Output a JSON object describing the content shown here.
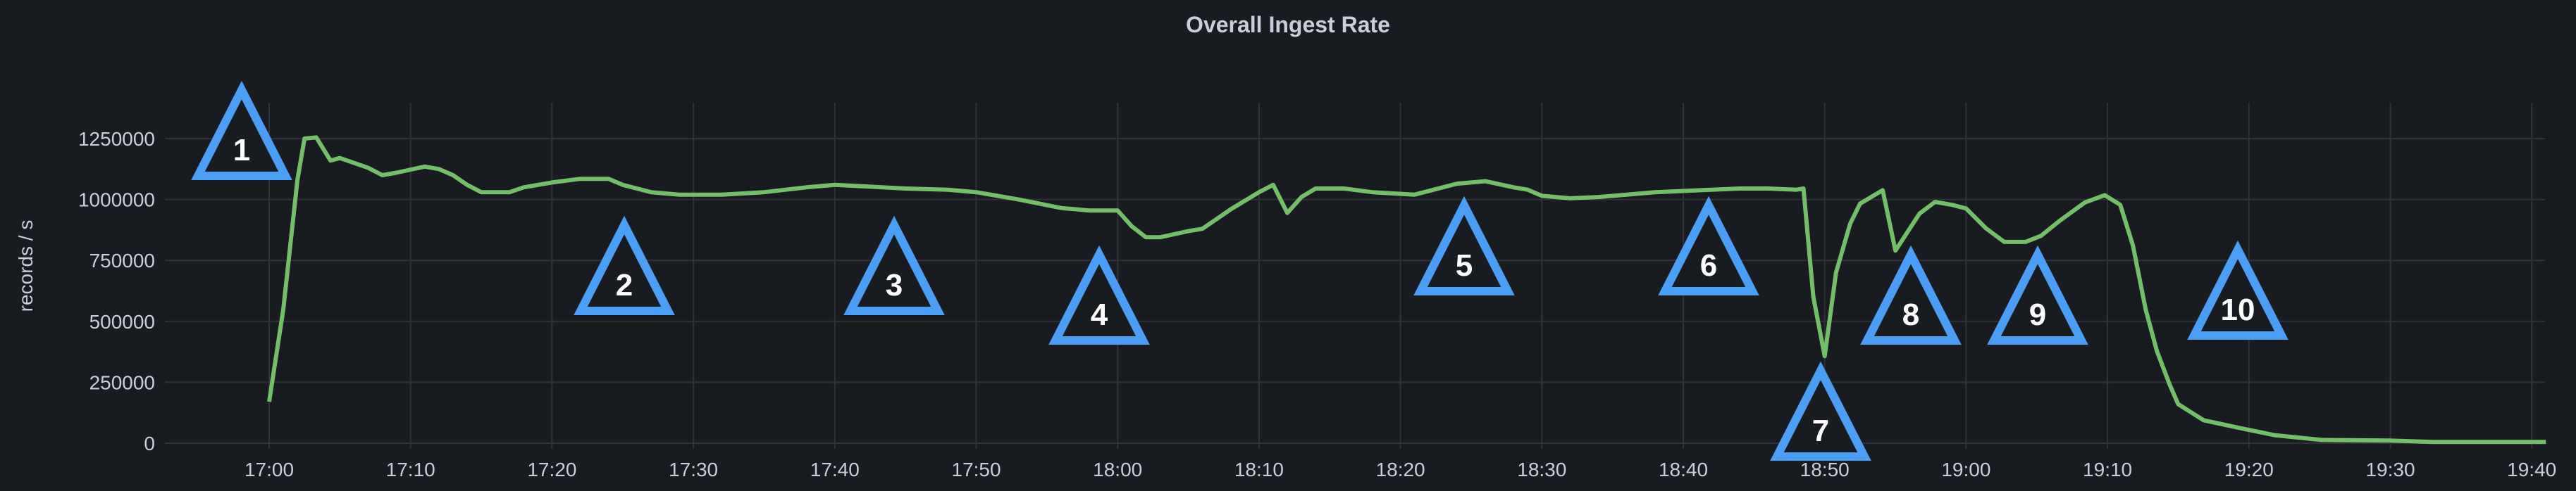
{
  "chart_data": {
    "type": "line",
    "title": "Overall Ingest Rate",
    "ylabel": "records / s",
    "xlabel": "",
    "ylim": [
      0,
      1250000
    ],
    "yticks": [
      "0",
      "250000",
      "500000",
      "750000",
      "1000000",
      "1250000"
    ],
    "xticks": [
      "17:00",
      "17:10",
      "17:20",
      "17:30",
      "17:40",
      "17:50",
      "18:00",
      "18:10",
      "18:20",
      "18:30",
      "18:40",
      "18:50",
      "19:00",
      "19:10",
      "19:20",
      "19:30",
      "19:40"
    ],
    "grid": true,
    "colors": {
      "series": "#73bf69",
      "annotation": "#4a9ff5",
      "background": "#181b1f"
    },
    "series": [
      {
        "x": [
          "17:00",
          "17:01",
          "17:02",
          "17:02:30",
          "17:03:20",
          "17:04:20",
          "17:05",
          "17:06",
          "17:07",
          "17:08",
          "17:09",
          "17:11",
          "17:12",
          "17:13",
          "17:14",
          "17:15",
          "17:17",
          "17:18",
          "17:20",
          "17:22",
          "17:24",
          "17:25",
          "17:27",
          "17:29",
          "17:32",
          "17:35",
          "17:38",
          "17:40",
          "17:45",
          "17:48",
          "17:50",
          "17:53",
          "17:56",
          "17:58",
          "18:00",
          "18:01",
          "18:02",
          "18:03",
          "18:05",
          "18:06",
          "18:08",
          "18:10",
          "18:11",
          "18:12",
          "18:13",
          "18:14",
          "18:16",
          "18:18",
          "18:21",
          "18:23",
          "18:24",
          "18:26",
          "18:28",
          "18:29",
          "18:30",
          "18:32",
          "18:34",
          "18:36",
          "18:38",
          "18:40",
          "18:42",
          "18:44",
          "18:46",
          "18:48",
          "18:48:30",
          "18:49:12",
          "18:50",
          "18:50:48",
          "18:51:48",
          "18:52:30",
          "18:54:06",
          "18:55",
          "18:56:42",
          "18:57:48",
          "18:59",
          "19:00",
          "19:01:24",
          "19:02:42",
          "19:04:12",
          "19:05:18",
          "19:06:36",
          "19:08:24",
          "19:09:48",
          "19:10:54",
          "19:11:48",
          "19:12:42",
          "19:13:30",
          "19:14:24",
          "19:15",
          "19:16:48",
          "19:19:12",
          "19:21:48",
          "19:25:12",
          "19:29:54",
          "19:33",
          "19:41"
        ],
        "values": [
          170000,
          550000,
          1080000,
          1250000,
          1255000,
          1160000,
          1170000,
          1150000,
          1130000,
          1100000,
          1110000,
          1135000,
          1125000,
          1100000,
          1060000,
          1030000,
          1030000,
          1050000,
          1070000,
          1085000,
          1085000,
          1060000,
          1030000,
          1020000,
          1020000,
          1030000,
          1050000,
          1060000,
          1045000,
          1040000,
          1030000,
          1000000,
          965000,
          955000,
          955000,
          890000,
          845000,
          845000,
          870000,
          880000,
          960000,
          1030000,
          1060000,
          945000,
          1010000,
          1045000,
          1045000,
          1030000,
          1020000,
          1050000,
          1065000,
          1075000,
          1050000,
          1040000,
          1015000,
          1005000,
          1010000,
          1020000,
          1030000,
          1035000,
          1040000,
          1045000,
          1045000,
          1040000,
          1045000,
          600000,
          357000,
          700000,
          900000,
          983000,
          1038000,
          790000,
          942000,
          990000,
          978000,
          963000,
          882000,
          826000,
          826000,
          851000,
          912000,
          988000,
          1018000,
          978000,
          811000,
          548000,
          377000,
          240000,
          160000,
          94000,
          64000,
          33000,
          13000,
          11000,
          5000,
          5000
        ]
      }
    ],
    "annotations": [
      "1",
      "2",
      "3",
      "4",
      "5",
      "6",
      "7",
      "8",
      "9",
      "10"
    ]
  }
}
